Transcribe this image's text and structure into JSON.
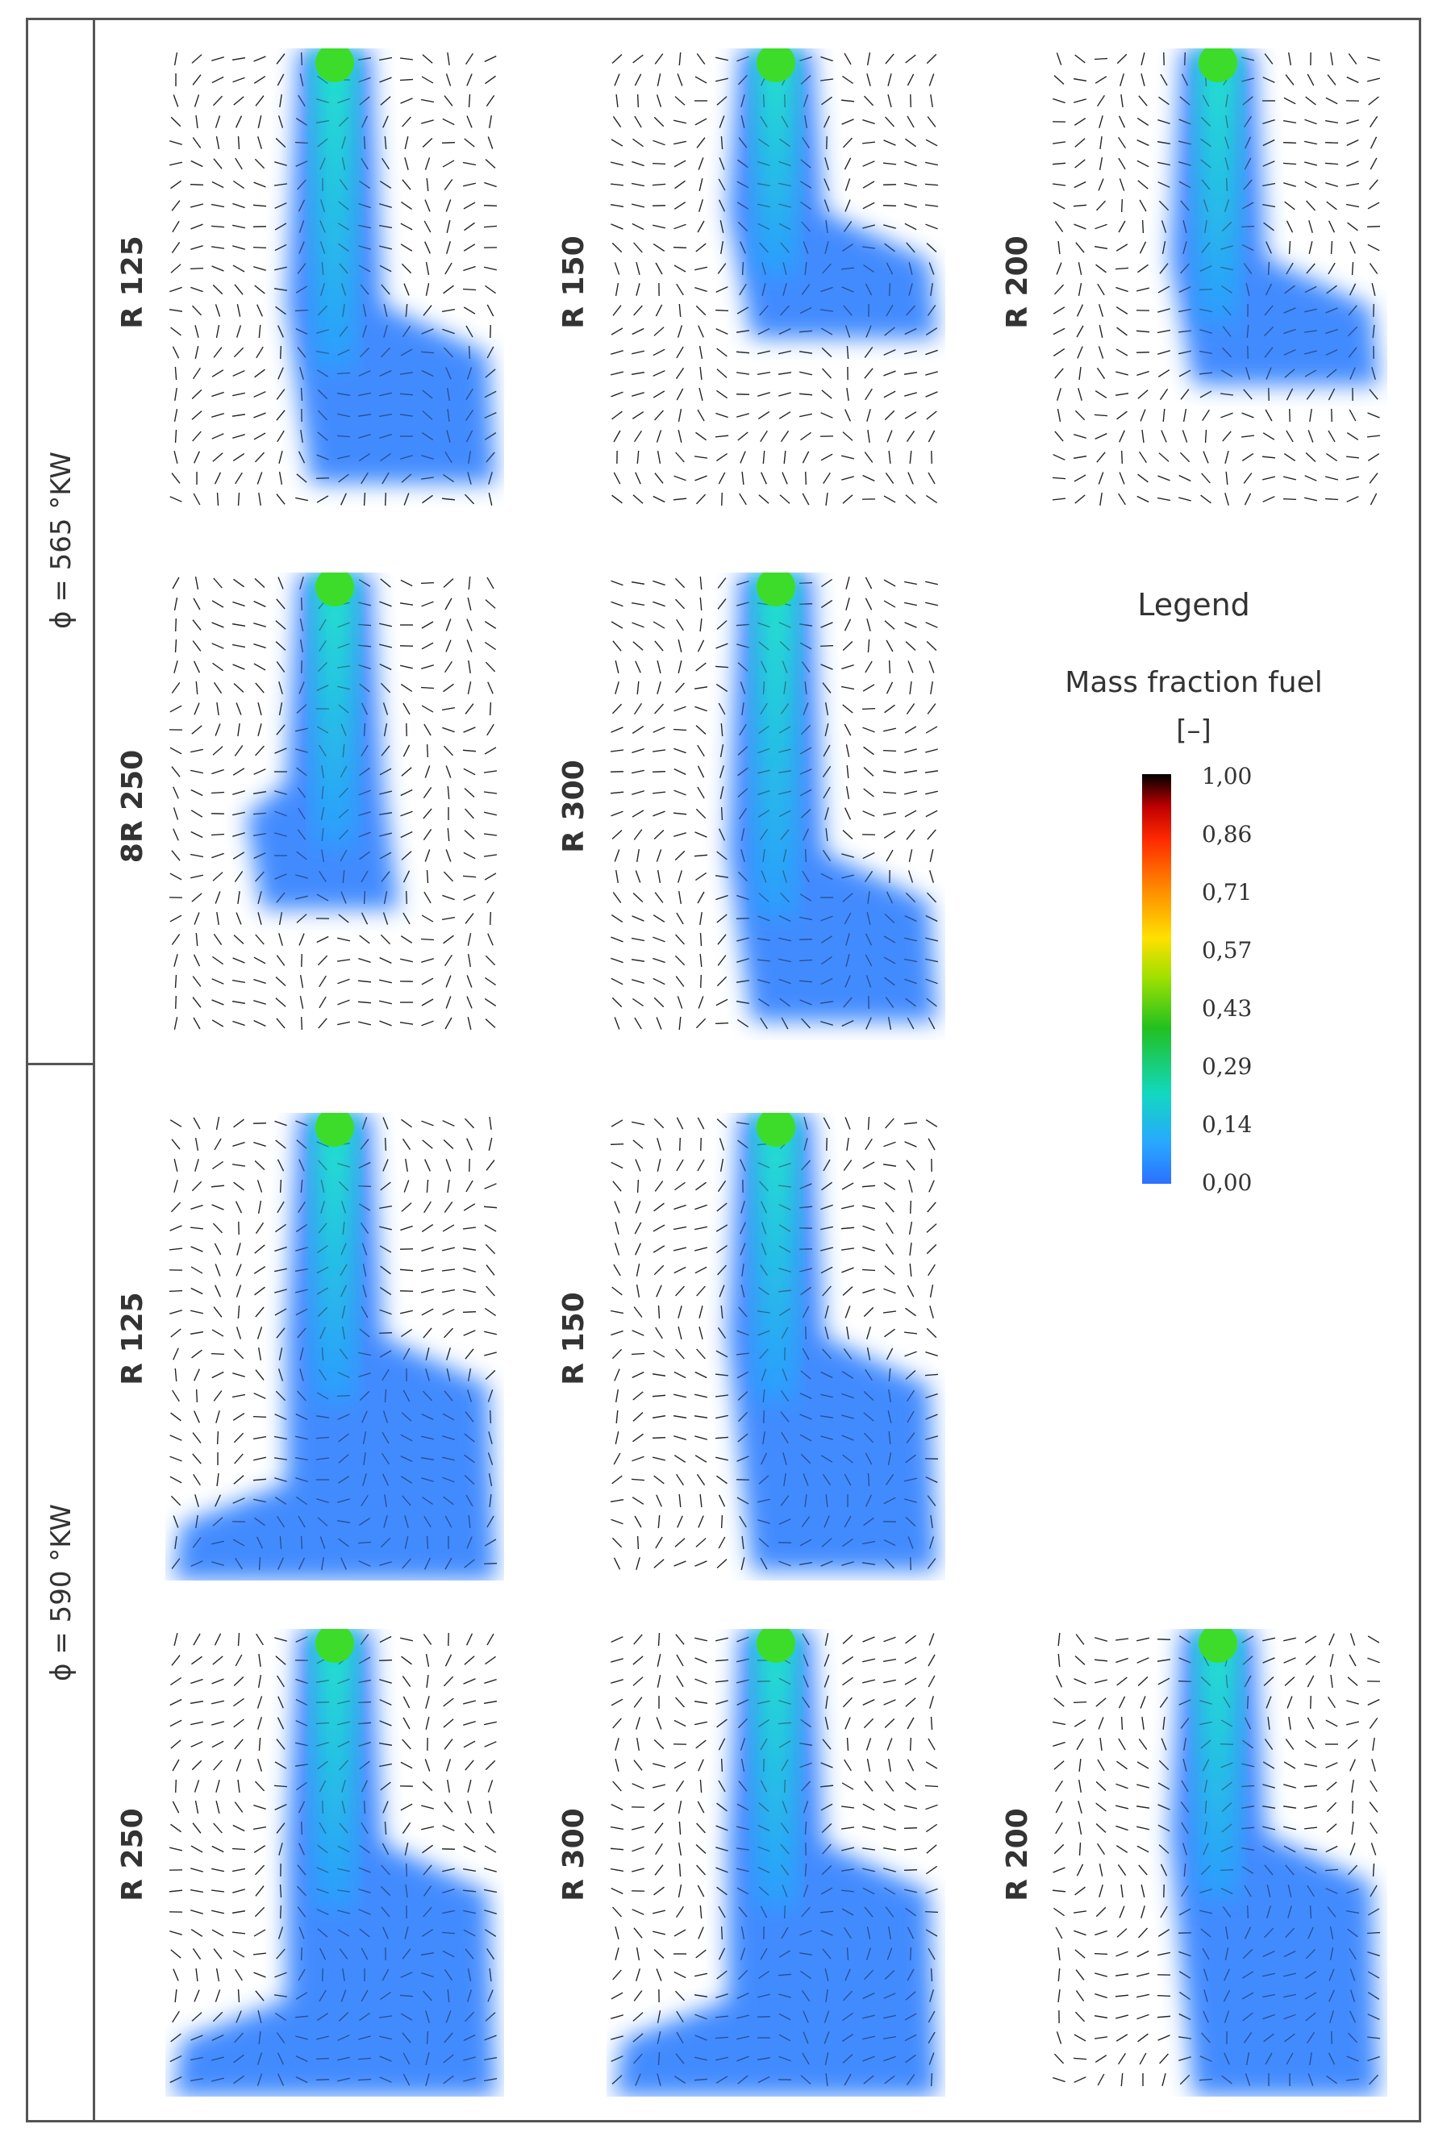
{
  "groups": [
    {
      "label": "ϕ = 565 °KW"
    },
    {
      "label": "ϕ = 590 °KW"
    }
  ],
  "panels": [
    {
      "case": "R 125",
      "extent": 0.93,
      "bend": 0.55,
      "side": "right"
    },
    {
      "case": "R 150",
      "extent": 0.62,
      "bend": 0.35,
      "side": "right"
    },
    {
      "case": "R 200",
      "extent": 0.72,
      "bend": 0.45,
      "side": "right"
    },
    {
      "case": "8R 250",
      "extent": 0.72,
      "bend": 0.45,
      "side": "left"
    },
    {
      "case": "R 300",
      "extent": 0.96,
      "bend": 0.6,
      "side": "right"
    },
    {
      "case": "R 125",
      "extent": 1.0,
      "bend": 0.48,
      "side": "both"
    },
    {
      "case": "R 150",
      "extent": 0.98,
      "bend": 0.48,
      "side": "right"
    },
    {
      "case": "R 250",
      "extent": 1.0,
      "bend": 0.46,
      "side": "both"
    },
    {
      "case": "R 300",
      "extent": 1.0,
      "bend": 0.46,
      "side": "both"
    },
    {
      "case": "R 200",
      "extent": 1.0,
      "bend": 0.44,
      "side": "right"
    }
  ],
  "legend": {
    "title": "Legend",
    "quantity": "Mass fraction fuel",
    "unit": "[–]",
    "ticks": [
      "1,00",
      "0,86",
      "0,71",
      "0,57",
      "0,43",
      "0,29",
      "0,14",
      "0,00"
    ]
  }
}
